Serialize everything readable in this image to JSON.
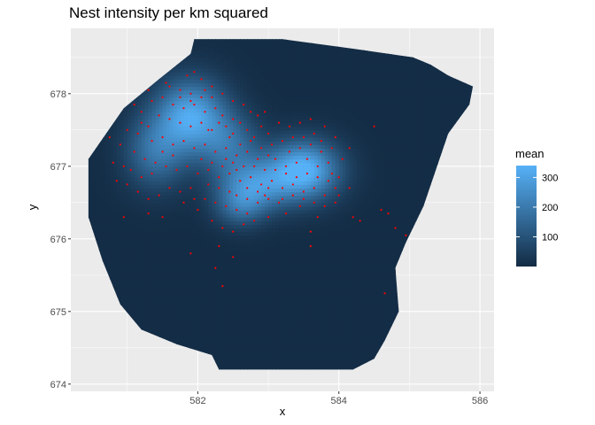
{
  "chart_data": {
    "type": "heatmap",
    "title": "Nest intensity per km squared",
    "xlabel": "x",
    "ylabel": "y",
    "xlim": [
      580.2,
      586.2
    ],
    "ylim": [
      673.9,
      678.9
    ],
    "x_ticks": [
      582,
      584,
      586
    ],
    "x_tick_labels": [
      "582",
      "584",
      "586"
    ],
    "y_ticks": [
      674,
      675,
      676,
      677,
      678
    ],
    "y_tick_labels": [
      "674",
      "675",
      "676",
      "677",
      "678"
    ],
    "grid": true,
    "legend": {
      "title": "mean",
      "placement": "right",
      "range": [
        0,
        340
      ],
      "ticks": [
        100,
        200,
        300
      ],
      "tick_labels": [
        "100",
        "200",
        "300"
      ],
      "low_color": "#132B43",
      "high_color": "#56B1F7"
    },
    "fill_scale": {
      "low": 0,
      "high": 340
    },
    "region_boundary": [
      [
        580.45,
        677.1
      ],
      [
        580.95,
        677.8
      ],
      [
        581.45,
        678.2
      ],
      [
        581.9,
        678.55
      ],
      [
        581.95,
        678.75
      ],
      [
        583.2,
        678.75
      ],
      [
        584.2,
        678.62
      ],
      [
        585.05,
        678.5
      ],
      [
        585.3,
        678.4
      ],
      [
        585.55,
        678.25
      ],
      [
        585.9,
        678.1
      ],
      [
        585.85,
        677.85
      ],
      [
        585.55,
        677.45
      ],
      [
        585.2,
        676.45
      ],
      [
        584.95,
        675.95
      ],
      [
        584.8,
        675.6
      ],
      [
        584.85,
        675.0
      ],
      [
        584.65,
        674.6
      ],
      [
        584.5,
        674.35
      ],
      [
        584.2,
        674.2
      ],
      [
        583.5,
        674.2
      ],
      [
        582.3,
        674.2
      ],
      [
        582.2,
        674.4
      ],
      [
        581.7,
        674.55
      ],
      [
        581.2,
        674.75
      ],
      [
        580.9,
        675.1
      ],
      [
        580.65,
        675.7
      ],
      [
        580.45,
        676.3
      ]
    ],
    "hotspots": [
      {
        "x": 581.9,
        "y": 677.7,
        "peak": 300,
        "sx": 0.35,
        "sy": 0.35
      },
      {
        "x": 581.4,
        "y": 677.2,
        "peak": 170,
        "sx": 0.3,
        "sy": 0.35
      },
      {
        "x": 583.5,
        "y": 676.95,
        "peak": 340,
        "sx": 0.35,
        "sy": 0.28
      },
      {
        "x": 582.8,
        "y": 676.75,
        "peak": 220,
        "sx": 0.35,
        "sy": 0.25
      },
      {
        "x": 582.45,
        "y": 677.3,
        "peak": 150,
        "sx": 0.3,
        "sy": 0.3
      },
      {
        "x": 582.6,
        "y": 676.45,
        "peak": 130,
        "sx": 0.25,
        "sy": 0.2
      }
    ],
    "background_value": 5,
    "points_color": "#FF0000",
    "points": [
      [
        581.85,
        678.25
      ],
      [
        581.95,
        678.3
      ],
      [
        582.05,
        678.2
      ],
      [
        581.6,
        678.1
      ],
      [
        581.75,
        678.05
      ],
      [
        581.9,
        678.0
      ],
      [
        582.1,
        678.05
      ],
      [
        582.2,
        677.95
      ],
      [
        581.5,
        677.95
      ],
      [
        581.65,
        677.85
      ],
      [
        581.8,
        677.8
      ],
      [
        581.95,
        677.85
      ],
      [
        582.1,
        677.75
      ],
      [
        582.25,
        677.8
      ],
      [
        582.35,
        677.7
      ],
      [
        581.45,
        677.7
      ],
      [
        581.6,
        677.65
      ],
      [
        581.75,
        677.6
      ],
      [
        581.9,
        677.55
      ],
      [
        582.05,
        677.6
      ],
      [
        582.2,
        677.5
      ],
      [
        582.4,
        677.55
      ],
      [
        582.5,
        677.45
      ],
      [
        582.6,
        677.6
      ],
      [
        582.7,
        677.5
      ],
      [
        582.8,
        677.4
      ],
      [
        582.9,
        677.55
      ],
      [
        583.0,
        677.45
      ],
      [
        582.85,
        677.7
      ],
      [
        582.95,
        677.75
      ],
      [
        581.3,
        677.55
      ],
      [
        581.15,
        677.45
      ],
      [
        581.35,
        677.35
      ],
      [
        581.5,
        677.4
      ],
      [
        581.65,
        677.3
      ],
      [
        581.8,
        677.35
      ],
      [
        581.95,
        677.25
      ],
      [
        582.1,
        677.3
      ],
      [
        582.25,
        677.2
      ],
      [
        582.4,
        677.25
      ],
      [
        582.55,
        677.15
      ],
      [
        582.7,
        677.2
      ],
      [
        582.85,
        677.1
      ],
      [
        581.1,
        677.2
      ],
      [
        581.25,
        677.1
      ],
      [
        581.4,
        677.05
      ],
      [
        581.55,
        677.0
      ],
      [
        581.7,
        676.95
      ],
      [
        581.85,
        677.0
      ],
      [
        582.0,
        676.9
      ],
      [
        582.15,
        676.95
      ],
      [
        582.3,
        676.85
      ],
      [
        582.45,
        676.9
      ],
      [
        582.6,
        676.8
      ],
      [
        582.75,
        676.85
      ],
      [
        582.9,
        676.75
      ],
      [
        583.05,
        676.8
      ],
      [
        583.2,
        676.7
      ],
      [
        583.35,
        676.75
      ],
      [
        583.5,
        676.65
      ],
      [
        583.65,
        676.7
      ],
      [
        583.8,
        676.6
      ],
      [
        583.95,
        676.7
      ],
      [
        583.1,
        676.95
      ],
      [
        583.25,
        677.0
      ],
      [
        583.4,
        677.05
      ],
      [
        583.55,
        677.1
      ],
      [
        583.7,
        677.0
      ],
      [
        583.85,
        677.05
      ],
      [
        583.3,
        677.2
      ],
      [
        583.45,
        677.25
      ],
      [
        583.6,
        677.3
      ],
      [
        583.75,
        677.2
      ],
      [
        583.5,
        677.4
      ],
      [
        583.65,
        677.45
      ],
      [
        583.35,
        677.4
      ],
      [
        583.2,
        677.35
      ],
      [
        583.05,
        677.3
      ],
      [
        583.9,
        676.9
      ],
      [
        584.0,
        676.85
      ],
      [
        582.55,
        676.6
      ],
      [
        582.7,
        676.55
      ],
      [
        582.85,
        676.5
      ],
      [
        583.0,
        676.55
      ],
      [
        583.15,
        676.5
      ],
      [
        582.4,
        676.45
      ],
      [
        582.55,
        676.4
      ],
      [
        582.7,
        676.35
      ],
      [
        582.25,
        676.5
      ],
      [
        582.1,
        676.55
      ],
      [
        581.9,
        676.7
      ],
      [
        581.75,
        676.65
      ],
      [
        581.6,
        676.7
      ],
      [
        581.45,
        676.6
      ],
      [
        581.3,
        676.55
      ],
      [
        581.15,
        676.65
      ],
      [
        581.0,
        676.75
      ],
      [
        580.85,
        676.8
      ],
      [
        580.95,
        677.0
      ],
      [
        580.8,
        677.05
      ],
      [
        580.9,
        677.3
      ],
      [
        581.0,
        677.5
      ],
      [
        581.2,
        677.75
      ],
      [
        581.35,
        677.9
      ],
      [
        580.75,
        677.4
      ],
      [
        582.0,
        676.4
      ],
      [
        582.2,
        676.25
      ],
      [
        582.35,
        676.15
      ],
      [
        582.5,
        676.1
      ],
      [
        582.65,
        676.2
      ],
      [
        582.8,
        676.25
      ],
      [
        583.0,
        676.3
      ],
      [
        583.25,
        676.35
      ],
      [
        583.45,
        676.45
      ],
      [
        584.2,
        676.3
      ],
      [
        584.3,
        676.25
      ],
      [
        584.6,
        676.4
      ],
      [
        584.7,
        676.35
      ],
      [
        584.8,
        676.15
      ],
      [
        584.95,
        676.05
      ],
      [
        584.0,
        676.6
      ],
      [
        584.15,
        676.7
      ],
      [
        584.5,
        677.55
      ],
      [
        583.7,
        676.3
      ],
      [
        583.6,
        676.1
      ],
      [
        583.6,
        675.9
      ],
      [
        582.3,
        675.9
      ],
      [
        581.9,
        675.8
      ],
      [
        582.5,
        675.75
      ],
      [
        582.25,
        675.6
      ],
      [
        582.35,
        675.35
      ],
      [
        584.65,
        675.25
      ],
      [
        581.5,
        676.3
      ],
      [
        581.3,
        676.35
      ],
      [
        580.95,
        676.3
      ],
      [
        582.15,
        677.5
      ],
      [
        582.3,
        677.6
      ],
      [
        582.45,
        677.4
      ],
      [
        583.15,
        677.6
      ],
      [
        583.3,
        677.55
      ],
      [
        583.45,
        677.6
      ],
      [
        583.6,
        677.65
      ],
      [
        583.75,
        677.35
      ],
      [
        583.9,
        677.25
      ],
      [
        584.05,
        677.1
      ],
      [
        584.15,
        677.25
      ],
      [
        583.95,
        677.4
      ],
      [
        583.8,
        677.55
      ],
      [
        582.65,
        677.85
      ],
      [
        582.5,
        677.9
      ],
      [
        582.35,
        678.0
      ],
      [
        581.55,
        678.15
      ],
      [
        581.3,
        678.05
      ],
      [
        581.1,
        677.85
      ],
      [
        581.2,
        677.6
      ],
      [
        582.05,
        677.1
      ],
      [
        582.2,
        677.05
      ],
      [
        582.35,
        677.0
      ],
      [
        582.5,
        677.05
      ],
      [
        582.65,
        677.0
      ],
      [
        582.8,
        677.0
      ],
      [
        582.95,
        676.95
      ],
      [
        583.1,
        677.1
      ],
      [
        583.25,
        676.9
      ],
      [
        583.4,
        676.85
      ],
      [
        583.55,
        676.9
      ],
      [
        583.7,
        676.85
      ],
      [
        583.85,
        676.8
      ],
      [
        583.2,
        676.55
      ],
      [
        583.35,
        676.6
      ],
      [
        583.5,
        676.55
      ],
      [
        583.65,
        676.5
      ],
      [
        583.8,
        676.45
      ],
      [
        583.95,
        676.5
      ],
      [
        582.95,
        676.6
      ],
      [
        582.3,
        676.7
      ],
      [
        582.15,
        676.75
      ],
      [
        582.45,
        676.65
      ],
      [
        581.95,
        676.55
      ],
      [
        581.8,
        676.5
      ],
      [
        581.65,
        677.15
      ],
      [
        581.5,
        677.2
      ],
      [
        581.35,
        676.9
      ],
      [
        581.2,
        676.85
      ],
      [
        581.05,
        676.95
      ],
      [
        581.75,
        677.95
      ],
      [
        581.9,
        677.9
      ],
      [
        582.05,
        677.95
      ],
      [
        582.2,
        678.1
      ],
      [
        582.5,
        677.65
      ],
      [
        582.75,
        677.75
      ],
      [
        582.6,
        677.3
      ],
      [
        582.75,
        677.35
      ],
      [
        582.9,
        677.25
      ],
      [
        583.0,
        677.15
      ],
      [
        582.55,
        676.95
      ],
      [
        582.4,
        677.1
      ],
      [
        582.7,
        676.7
      ],
      [
        582.85,
        676.65
      ],
      [
        583.0,
        676.7
      ]
    ]
  }
}
